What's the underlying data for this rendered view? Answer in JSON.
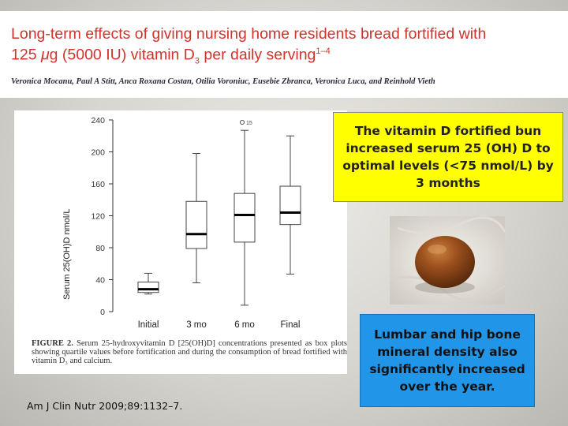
{
  "header": {
    "title_line1": "Long-term effects of giving nursing home residents bread fortified with",
    "title_line2_prefix": "125 ",
    "title_mu": "μ",
    "title_line2_mid": "g (5000 IU) vitamin D",
    "title_sub": "3",
    "title_line2_suffix": " per daily serving",
    "title_sup": "1–4",
    "authors": "Veronica Mocanu, Paul A Stitt, Anca Roxana Costan, Otilia Voroniuc, Eusebie Zbranca, Veronica Luca, and Reinhold Vieth"
  },
  "figure": {
    "caption_label": "FIGURE 2.",
    "caption_text": " Serum 25-hydroxyvitamin D [25(OH)D] concentrations presented as box plots showing quartile values before fortification and during the consumption of bread fortified with vitamin D₃ and calcium."
  },
  "citation": "Am J Clin Nutr 2009;89:1132–7.",
  "callouts": {
    "yellow": "The vitamin D fortified bun increased serum 25 (OH) D to optimal levels (<75 nmol/L) by 3 months",
    "blue": "Lumbar and hip bone mineral density also significantly increased over the year."
  },
  "colors": {
    "title": "#d0342c",
    "yellow_box": "#ffff00",
    "blue_box": "#2196e8"
  },
  "chart_data": {
    "type": "box",
    "ylabel": "Serum 25(OH)D  nmol/L",
    "xlabel": "",
    "ylim": [
      0,
      240
    ],
    "yticks": [
      0,
      40,
      80,
      120,
      160,
      200,
      240
    ],
    "ytick_labels": [
      "0",
      "40",
      "80",
      "120",
      "160",
      "200",
      "240"
    ],
    "categories": [
      "Initial",
      "3 mo",
      "6 mo",
      "Final"
    ],
    "boxes": [
      {
        "label": "Initial",
        "min": 22,
        "q1": 24,
        "median": 28,
        "q3": 37,
        "max": 48,
        "outliers": []
      },
      {
        "label": "3 mo",
        "min": 36,
        "q1": 79,
        "median": 97,
        "q3": 138,
        "max": 198,
        "outliers": []
      },
      {
        "label": "6 mo",
        "min": 8,
        "q1": 87,
        "median": 121,
        "q3": 148,
        "max": 227,
        "outliers": [
          {
            "value": 240,
            "label": "15"
          }
        ]
      },
      {
        "label": "Final",
        "min": 47,
        "q1": 109,
        "median": 124,
        "q3": 157,
        "max": 220,
        "outliers": []
      }
    ]
  }
}
